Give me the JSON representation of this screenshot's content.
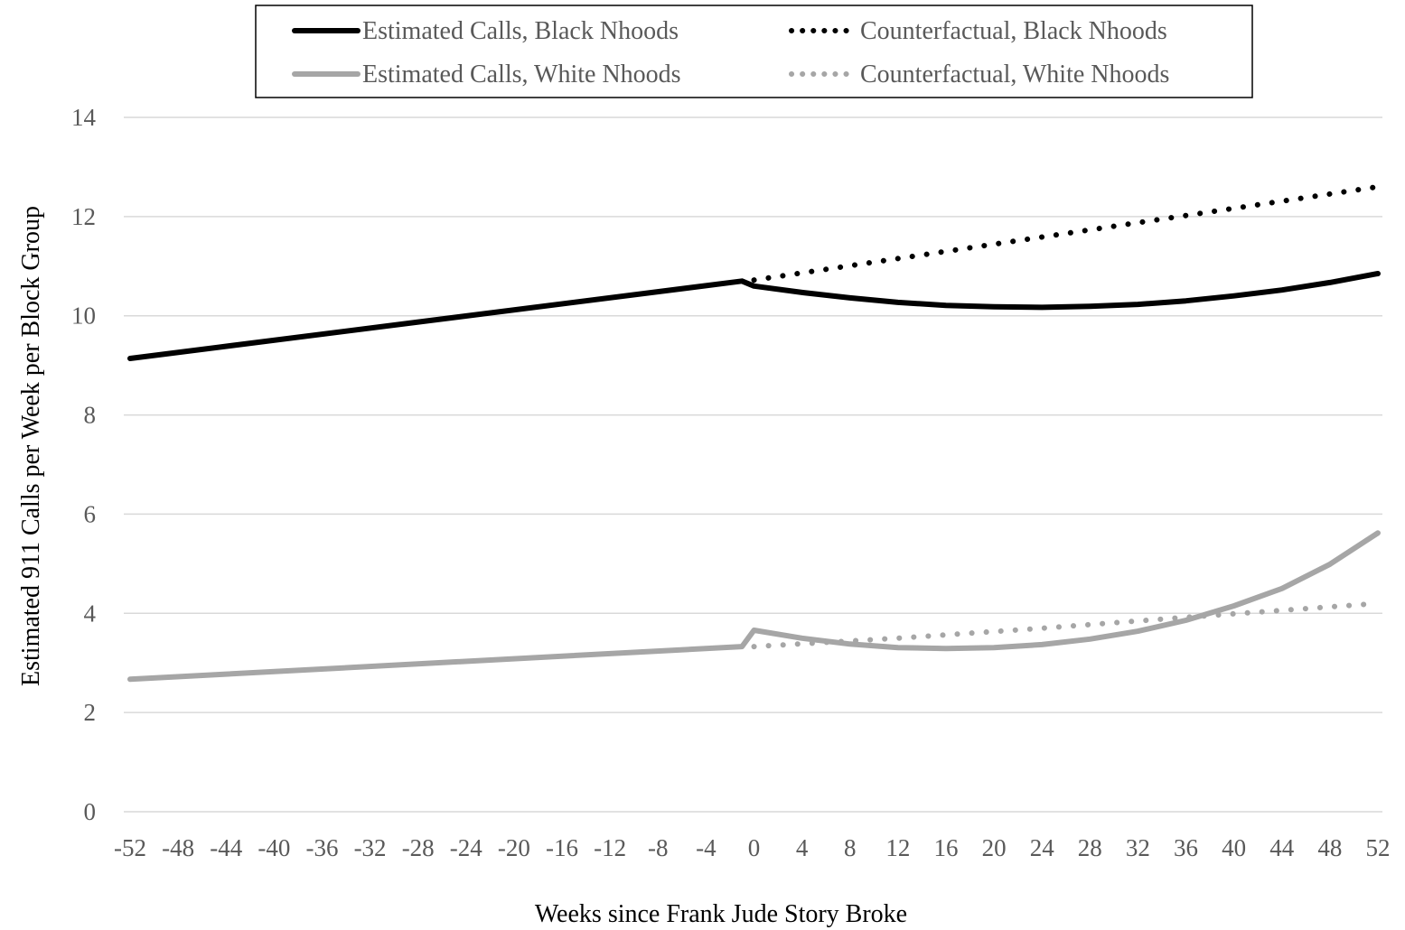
{
  "chart_data": {
    "type": "line",
    "title": "",
    "xlabel": "Weeks since Frank Jude Story Broke",
    "ylabel": "Estimated 911 Calls per Week per Block Group",
    "xlim": [
      -52,
      52
    ],
    "ylim": [
      0,
      14
    ],
    "x_ticks": [
      -52,
      -48,
      -44,
      -40,
      -36,
      -32,
      -28,
      -24,
      -20,
      -16,
      -12,
      -8,
      -4,
      0,
      4,
      8,
      12,
      16,
      20,
      24,
      28,
      32,
      36,
      40,
      44,
      48,
      52
    ],
    "y_ticks": [
      0,
      2,
      4,
      6,
      8,
      10,
      12,
      14
    ],
    "grid": "horizontal",
    "legend_position": "top-center",
    "series": [
      {
        "name": "Estimated Calls, Black Nhoods",
        "color": "#000000",
        "style": "solid",
        "points": [
          [
            -52,
            9.14
          ],
          [
            -1,
            10.7
          ],
          [
            0,
            10.6
          ],
          [
            4,
            10.47
          ],
          [
            8,
            10.36
          ],
          [
            12,
            10.27
          ],
          [
            16,
            10.21
          ],
          [
            20,
            10.18
          ],
          [
            24,
            10.17
          ],
          [
            28,
            10.19
          ],
          [
            32,
            10.23
          ],
          [
            36,
            10.3
          ],
          [
            40,
            10.4
          ],
          [
            44,
            10.52
          ],
          [
            48,
            10.67
          ],
          [
            52,
            10.85
          ]
        ]
      },
      {
        "name": "Counterfactual, Black Nhoods",
        "color": "#000000",
        "style": "dotted",
        "points": [
          [
            0,
            10.72
          ],
          [
            52,
            12.6
          ]
        ]
      },
      {
        "name": "Estimated Calls, White Nhoods",
        "color": "#a6a6a6",
        "style": "solid",
        "points": [
          [
            -52,
            2.67
          ],
          [
            -1,
            3.33
          ],
          [
            0,
            3.66
          ],
          [
            4,
            3.5
          ],
          [
            8,
            3.38
          ],
          [
            12,
            3.31
          ],
          [
            16,
            3.29
          ],
          [
            20,
            3.31
          ],
          [
            24,
            3.37
          ],
          [
            28,
            3.48
          ],
          [
            32,
            3.64
          ],
          [
            36,
            3.86
          ],
          [
            40,
            4.15
          ],
          [
            44,
            4.5
          ],
          [
            48,
            4.99
          ],
          [
            52,
            5.62
          ]
        ]
      },
      {
        "name": "Counterfactual, White Nhoods",
        "color": "#a6a6a6",
        "style": "dotted",
        "points": [
          [
            0,
            3.33
          ],
          [
            12,
            3.5
          ],
          [
            24,
            3.7
          ],
          [
            36,
            3.92
          ],
          [
            52,
            4.2
          ]
        ]
      }
    ]
  }
}
